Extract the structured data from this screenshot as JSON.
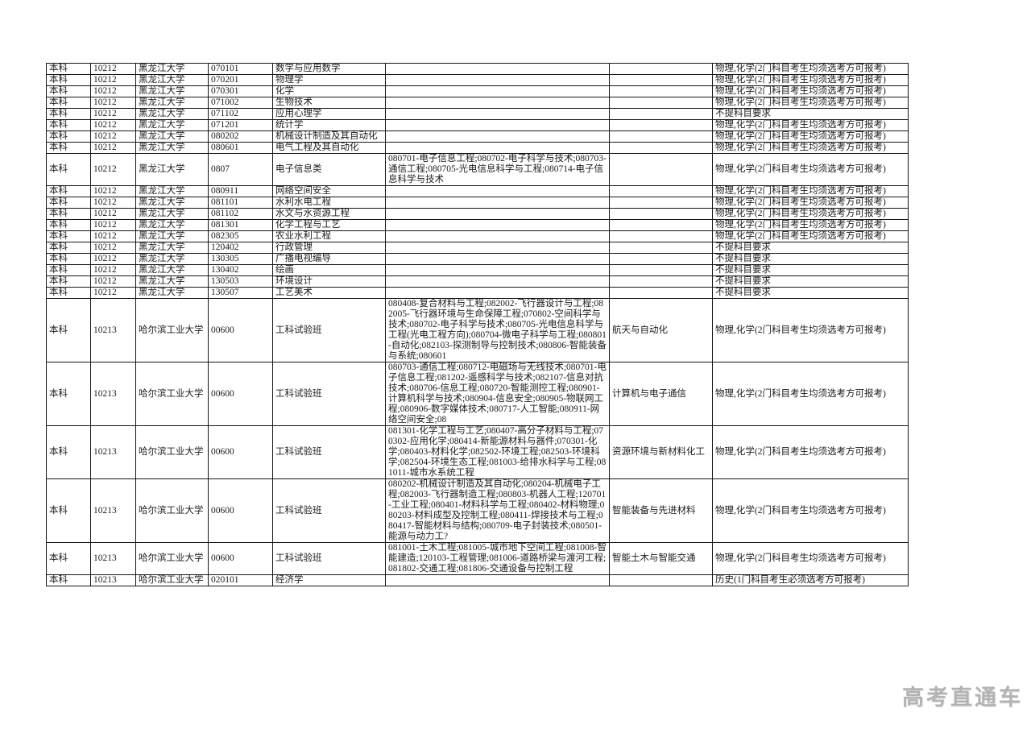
{
  "watermark": {
    "text": "高考直通车"
  },
  "table": {
    "column_keys": [
      "level",
      "school_code",
      "school_name",
      "major_code",
      "major_name",
      "included_majors",
      "category",
      "subject_requirement"
    ],
    "rows": [
      {
        "level": "本科",
        "school_code": "10212",
        "school_name": "黑龙江大学",
        "major_code": "070101",
        "major_name": "数学与应用数学",
        "included_majors": "",
        "category": "",
        "subject_requirement": "物理,化学(2门科目考生均须选考方可报考)"
      },
      {
        "level": "本科",
        "school_code": "10212",
        "school_name": "黑龙江大学",
        "major_code": "070201",
        "major_name": "物理学",
        "included_majors": "",
        "category": "",
        "subject_requirement": "物理,化学(2门科目考生均须选考方可报考)"
      },
      {
        "level": "本科",
        "school_code": "10212",
        "school_name": "黑龙江大学",
        "major_code": "070301",
        "major_name": "化学",
        "included_majors": "",
        "category": "",
        "subject_requirement": "物理,化学(2门科目考生均须选考方可报考)"
      },
      {
        "level": "本科",
        "school_code": "10212",
        "school_name": "黑龙江大学",
        "major_code": "071002",
        "major_name": "生物技术",
        "included_majors": "",
        "category": "",
        "subject_requirement": "物理,化学(2门科目考生均须选考方可报考)"
      },
      {
        "level": "本科",
        "school_code": "10212",
        "school_name": "黑龙江大学",
        "major_code": "071102",
        "major_name": "应用心理学",
        "included_majors": "",
        "category": "",
        "subject_requirement": "不提科目要求"
      },
      {
        "level": "本科",
        "school_code": "10212",
        "school_name": "黑龙江大学",
        "major_code": "071201",
        "major_name": "统计学",
        "included_majors": "",
        "category": "",
        "subject_requirement": "物理,化学(2门科目考生均须选考方可报考)"
      },
      {
        "level": "本科",
        "school_code": "10212",
        "school_name": "黑龙江大学",
        "major_code": "080202",
        "major_name": "机械设计制造及其自动化",
        "included_majors": "",
        "category": "",
        "subject_requirement": "物理,化学(2门科目考生均须选考方可报考)"
      },
      {
        "level": "本科",
        "school_code": "10212",
        "school_name": "黑龙江大学",
        "major_code": "080601",
        "major_name": "电气工程及其自动化",
        "included_majors": "",
        "category": "",
        "subject_requirement": "物理,化学(2门科目考生均须选考方可报考)"
      },
      {
        "level": "本科",
        "school_code": "10212",
        "school_name": "黑龙江大学",
        "major_code": "0807",
        "major_name": "电子信息类",
        "included_majors": "080701-电子信息工程;080702-电子科学与技术;080703-通信工程;080705-光电信息科学与工程;080714-电子信息科学与技术",
        "category": "",
        "subject_requirement": "物理,化学(2门科目考生均须选考方可报考)"
      },
      {
        "level": "本科",
        "school_code": "10212",
        "school_name": "黑龙江大学",
        "major_code": "080911",
        "major_name": "网络空间安全",
        "included_majors": "",
        "category": "",
        "subject_requirement": "物理,化学(2门科目考生均须选考方可报考)"
      },
      {
        "level": "本科",
        "school_code": "10212",
        "school_name": "黑龙江大学",
        "major_code": "081101",
        "major_name": "水利水电工程",
        "included_majors": "",
        "category": "",
        "subject_requirement": "物理,化学(2门科目考生均须选考方可报考)"
      },
      {
        "level": "本科",
        "school_code": "10212",
        "school_name": "黑龙江大学",
        "major_code": "081102",
        "major_name": "水文与水资源工程",
        "included_majors": "",
        "category": "",
        "subject_requirement": "物理,化学(2门科目考生均须选考方可报考)"
      },
      {
        "level": "本科",
        "school_code": "10212",
        "school_name": "黑龙江大学",
        "major_code": "081301",
        "major_name": "化学工程与工艺",
        "included_majors": "",
        "category": "",
        "subject_requirement": "物理,化学(2门科目考生均须选考方可报考)"
      },
      {
        "level": "本科",
        "school_code": "10212",
        "school_name": "黑龙江大学",
        "major_code": "082305",
        "major_name": "农业水利工程",
        "included_majors": "",
        "category": "",
        "subject_requirement": "物理,化学(2门科目考生均须选考方可报考)"
      },
      {
        "level": "本科",
        "school_code": "10212",
        "school_name": "黑龙江大学",
        "major_code": "120402",
        "major_name": "行政管理",
        "included_majors": "",
        "category": "",
        "subject_requirement": "不提科目要求"
      },
      {
        "level": "本科",
        "school_code": "10212",
        "school_name": "黑龙江大学",
        "major_code": "130305",
        "major_name": "广播电视编导",
        "included_majors": "",
        "category": "",
        "subject_requirement": "不提科目要求"
      },
      {
        "level": "本科",
        "school_code": "10212",
        "school_name": "黑龙江大学",
        "major_code": "130402",
        "major_name": "绘画",
        "included_majors": "",
        "category": "",
        "subject_requirement": "不提科目要求"
      },
      {
        "level": "本科",
        "school_code": "10212",
        "school_name": "黑龙江大学",
        "major_code": "130503",
        "major_name": "环境设计",
        "included_majors": "",
        "category": "",
        "subject_requirement": "不提科目要求"
      },
      {
        "level": "本科",
        "school_code": "10212",
        "school_name": "黑龙江大学",
        "major_code": "130507",
        "major_name": "工艺美术",
        "included_majors": "",
        "category": "",
        "subject_requirement": "不提科目要求"
      },
      {
        "level": "本科",
        "school_code": "10213",
        "school_name": "哈尔滨工业大学",
        "major_code": "00600",
        "major_name": "工科试验班",
        "included_majors": "080408-复合材料与工程;082002-飞行器设计与工程;082005-飞行器环境与生命保障工程;070802-空间科学与技术;080702-电子科学与技术;080705-光电信息科学与工程(光电工程方向);080704-微电子科学与工程;080801-自动化;082103-探测制导与控制技术;080806-智能装备与系统;080601",
        "category": "航天与自动化",
        "subject_requirement": "物理,化学(2门科目考生均须选考方可报考)"
      },
      {
        "level": "本科",
        "school_code": "10213",
        "school_name": "哈尔滨工业大学",
        "major_code": "00600",
        "major_name": "工科试验班",
        "included_majors": "080703-通信工程;080712-电磁场与无线技术;080701-电子信息工程;081202-遥感科学与技术;082107-信息对抗技术;080706-信息工程;080720-智能测控工程;080901-计算机科学与技术;080904-信息安全;080905-物联网工程;080906-数字媒体技术;080717-人工智能;080911-网络空间安全;08",
        "category": "计算机与电子通信",
        "subject_requirement": "物理,化学(2门科目考生均须选考方可报考)"
      },
      {
        "level": "本科",
        "school_code": "10213",
        "school_name": "哈尔滨工业大学",
        "major_code": "00600",
        "major_name": "工科试验班",
        "included_majors": "081301-化学工程与工艺;080407-高分子材料与工程;070302-应用化学;080414-新能源材料与器件;070301-化学;080403-材料化学;082502-环境工程;082503-环境科学;082504-环境生态工程;081003-给排水科学与工程;081011-城市水系统工程",
        "category": "资源环境与新材料化工",
        "subject_requirement": "物理,化学(2门科目考生均须选考方可报考)"
      },
      {
        "level": "本科",
        "school_code": "10213",
        "school_name": "哈尔滨工业大学",
        "major_code": "00600",
        "major_name": "工科试验班",
        "included_majors": "080202-机械设计制造及其自动化;080204-机械电子工程;082003-飞行器制造工程;080803-机器人工程;120701-工业工程;080401-材料科学与工程;080402-材料物理;080203-材料成型及控制工程;080411-焊接技术与工程;080417-智能材料与结构;080709-电子封装技术;080501-能源与动力工?",
        "category": "智能装备与先进材料",
        "subject_requirement": "物理,化学(2门科目考生均须选考方可报考)"
      },
      {
        "level": "本科",
        "school_code": "10213",
        "school_name": "哈尔滨工业大学",
        "major_code": "00600",
        "major_name": "工科试验班",
        "included_majors": "081001-土木工程;081005-城市地下空间工程;081008-智能建造;120103-工程管理;081006-道路桥梁与渡河工程;081802-交通工程;081806-交通设备与控制工程",
        "category": "智能土木与智能交通",
        "subject_requirement": "物理,化学(2门科目考生均须选考方可报考)"
      },
      {
        "level": "本科",
        "school_code": "10213",
        "school_name": "哈尔滨工业大学",
        "major_code": "020101",
        "major_name": "经济学",
        "included_majors": "",
        "category": "",
        "subject_requirement": "历史(1门科目考生必须选考方可报考)"
      }
    ]
  }
}
